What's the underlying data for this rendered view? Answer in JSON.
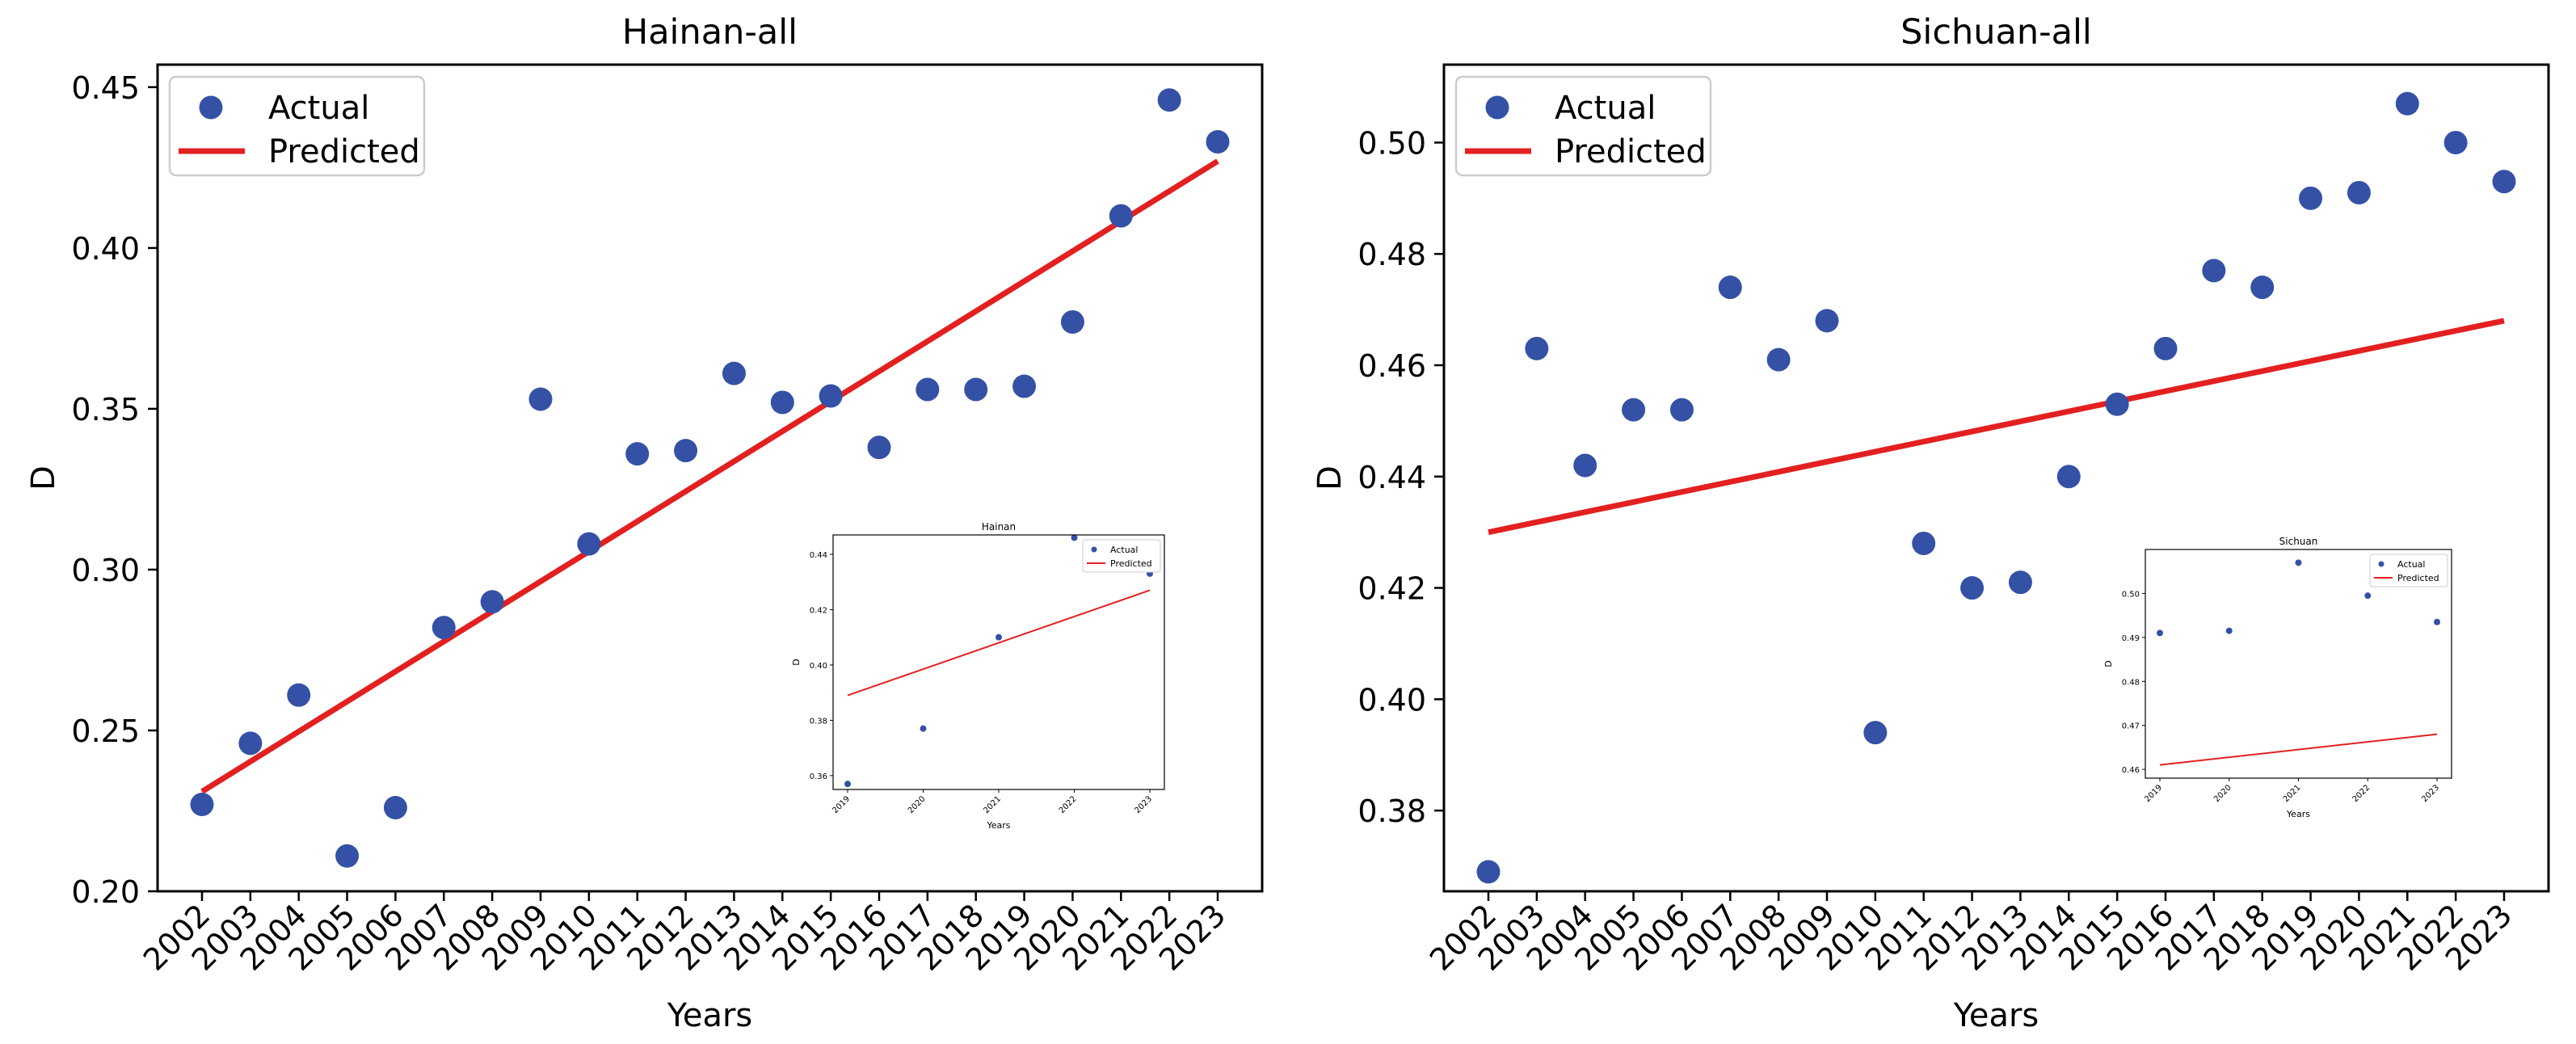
{
  "colors": {
    "actual": "#3451a6",
    "predicted": "#e32020",
    "axis": "#000000"
  },
  "legend_labels": {
    "actual": "Actual",
    "predicted": "Predicted"
  },
  "chart_data": [
    {
      "type": "scatter",
      "title": "Hainan-all",
      "xlabel": "Years",
      "ylabel": "D",
      "legend": "upper-left",
      "x": [
        "2002",
        "2003",
        "2004",
        "2005",
        "2006",
        "2007",
        "2008",
        "2009",
        "2010",
        "2011",
        "2012",
        "2013",
        "2014",
        "2015",
        "2016",
        "2017",
        "2018",
        "2019",
        "2020",
        "2021",
        "2022",
        "2023"
      ],
      "ylim": [
        0.2,
        0.457
      ],
      "yticks": [
        "0.20",
        "0.25",
        "0.30",
        "0.35",
        "0.40",
        "0.45"
      ],
      "series": [
        {
          "name": "Actual",
          "kind": "scatter",
          "values": [
            0.227,
            0.246,
            0.261,
            0.211,
            0.226,
            0.282,
            0.29,
            0.353,
            0.308,
            0.336,
            0.337,
            0.361,
            0.352,
            0.354,
            0.338,
            0.356,
            0.356,
            0.357,
            0.377,
            0.41,
            0.446,
            0.433
          ]
        },
        {
          "name": "Predicted",
          "kind": "line",
          "start": 0.231,
          "end": 0.427
        }
      ],
      "inset": {
        "title": "Hainan",
        "xlabel": "Years",
        "ylabel": "D",
        "x": [
          "2019",
          "2020",
          "2021",
          "2022",
          "2023"
        ],
        "ylim": [
          0.355,
          0.447
        ],
        "yticks": [
          "0.36",
          "0.38",
          "0.40",
          "0.42",
          "0.44"
        ],
        "actual": [
          0.357,
          0.377,
          0.41,
          0.446,
          0.433
        ],
        "predicted": [
          0.389,
          0.427
        ]
      }
    },
    {
      "type": "scatter",
      "title": "Sichuan-all",
      "xlabel": "Years",
      "ylabel": "D",
      "legend": "upper-left",
      "x": [
        "2002",
        "2003",
        "2004",
        "2005",
        "2006",
        "2007",
        "2008",
        "2009",
        "2010",
        "2011",
        "2012",
        "2013",
        "2014",
        "2015",
        "2016",
        "2017",
        "2018",
        "2019",
        "2020",
        "2021",
        "2022",
        "2023"
      ],
      "ylim": [
        0.3655,
        0.514
      ],
      "yticks": [
        "0.38",
        "0.40",
        "0.42",
        "0.44",
        "0.46",
        "0.48",
        "0.50"
      ],
      "series": [
        {
          "name": "Actual",
          "kind": "scatter",
          "values": [
            0.369,
            0.463,
            0.442,
            0.452,
            0.452,
            0.474,
            0.461,
            0.468,
            0.394,
            0.428,
            0.42,
            0.421,
            0.44,
            0.453,
            0.463,
            0.477,
            0.474,
            0.49,
            0.491,
            0.507,
            0.5,
            0.493
          ]
        },
        {
          "name": "Predicted",
          "kind": "line",
          "start": 0.43,
          "end": 0.468
        }
      ],
      "inset": {
        "title": "Sichuan",
        "xlabel": "Years",
        "ylabel": "D",
        "x": [
          "2019",
          "2020",
          "2021",
          "2022",
          "2023"
        ],
        "ylim": [
          0.458,
          0.51
        ],
        "yticks": [
          "0.46",
          "0.47",
          "0.48",
          "0.49",
          "0.50"
        ],
        "actual": [
          0.491,
          0.4915,
          0.507,
          0.4995,
          0.4935
        ],
        "predicted": [
          0.461,
          0.468
        ]
      }
    }
  ]
}
